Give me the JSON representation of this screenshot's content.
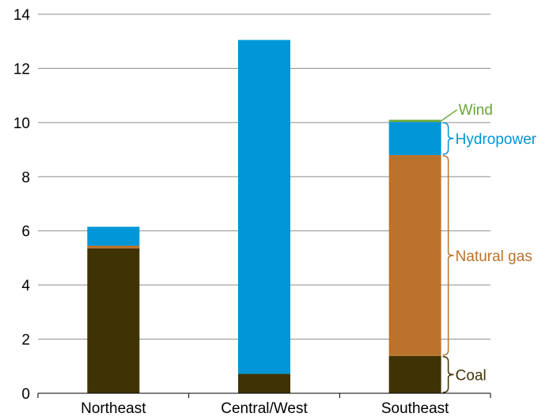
{
  "chart_data": {
    "type": "bar",
    "stacked": true,
    "title": "",
    "xlabel": "",
    "ylabel": "",
    "categories": [
      "Northeast",
      "Central/West",
      "Southeast"
    ],
    "ylim": [
      0,
      14
    ],
    "yticks": [
      "0",
      "2",
      "4",
      "6",
      "8",
      "10",
      "12",
      "14"
    ],
    "grid": true,
    "series": [
      {
        "name": "Coal",
        "color": "#3f3305",
        "values": [
          5.35,
          0.72,
          1.38
        ]
      },
      {
        "name": "Natural gas",
        "color": "#bb722b",
        "values": [
          0.1,
          0,
          7.42
        ]
      },
      {
        "name": "Hydropower",
        "color": "#0096d7",
        "values": [
          0.7,
          12.33,
          1.22
        ]
      },
      {
        "name": "Wind",
        "color": "#6aa539",
        "values": [
          0,
          0,
          0.08
        ]
      }
    ],
    "annotations": [
      {
        "label": "Wind",
        "series": "Wind",
        "category": "Southeast",
        "color": "#6aa539",
        "style": "leader-line"
      },
      {
        "label": "Hydropower",
        "series": "Hydropower",
        "category": "Southeast",
        "color": "#0096d7",
        "style": "brace"
      },
      {
        "label": "Natural gas",
        "series": "Natural gas",
        "category": "Southeast",
        "color": "#bb722b",
        "style": "brace"
      },
      {
        "label": "Coal",
        "series": "Coal",
        "category": "Southeast",
        "color": "#3f3305",
        "style": "brace"
      }
    ]
  }
}
